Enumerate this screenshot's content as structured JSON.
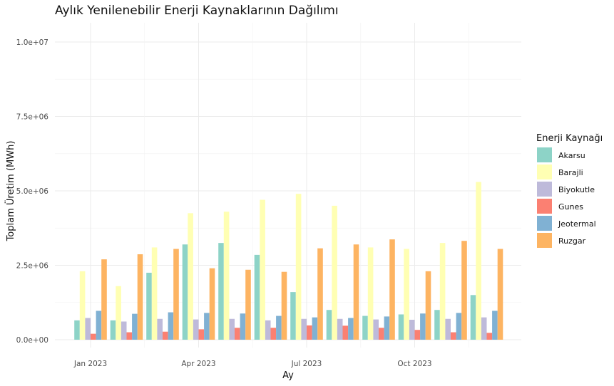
{
  "chart_data": {
    "type": "bar",
    "title": "Aylık Yenilenebilir Enerji Kaynaklarının Dağılımı",
    "xlabel": "Ay",
    "ylabel": "Toplam Üretim (MWh)",
    "ylim": [
      0,
      10500000
    ],
    "yticks": [
      0,
      2500000,
      5000000,
      7500000,
      10000000
    ],
    "ytick_labels": [
      "0.0e+00",
      "2.5e+06",
      "5.0e+06",
      "7.5e+06",
      "1.0e+07"
    ],
    "categories": [
      "2023-01",
      "2023-02",
      "2023-03",
      "2023-04",
      "2023-05",
      "2023-06",
      "2023-07",
      "2023-08",
      "2023-09",
      "2023-10",
      "2023-11",
      "2023-12"
    ],
    "xtick_labels": [
      {
        "month": "2023-01",
        "label": "Jan 2023"
      },
      {
        "month": "2023-04",
        "label": "Apr 2023"
      },
      {
        "month": "2023-07",
        "label": "Jul 2023"
      },
      {
        "month": "2023-10",
        "label": "Oct 2023"
      }
    ],
    "grid": true,
    "legend_position": "right",
    "legend_title": "Enerji Kaynağı",
    "series": [
      {
        "name": "Akarsu",
        "color": "#8DD3C7",
        "values": [
          650000,
          650000,
          2250000,
          3200000,
          3250000,
          2850000,
          1600000,
          1000000,
          800000,
          850000,
          1000000,
          1500000
        ]
      },
      {
        "name": "Barajli",
        "color": "#FFFFB3",
        "values": [
          2300000,
          1800000,
          3100000,
          4250000,
          4300000,
          4700000,
          4900000,
          4500000,
          3100000,
          3050000,
          3250000,
          5300000
        ]
      },
      {
        "name": "Biyokutle",
        "color": "#BEBADA",
        "values": [
          730000,
          610000,
          700000,
          680000,
          700000,
          650000,
          700000,
          700000,
          680000,
          670000,
          700000,
          750000
        ]
      },
      {
        "name": "Gunes",
        "color": "#FB8072",
        "values": [
          200000,
          250000,
          270000,
          350000,
          400000,
          400000,
          480000,
          470000,
          400000,
          330000,
          250000,
          230000
        ]
      },
      {
        "name": "Jeotermal",
        "color": "#80B1D3",
        "values": [
          970000,
          870000,
          920000,
          900000,
          880000,
          800000,
          750000,
          730000,
          780000,
          880000,
          900000,
          970000
        ]
      },
      {
        "name": "Ruzgar",
        "color": "#FDB462",
        "values": [
          2700000,
          2870000,
          3050000,
          2400000,
          2350000,
          2280000,
          3070000,
          3200000,
          3370000,
          2300000,
          3320000,
          3050000
        ]
      }
    ]
  }
}
